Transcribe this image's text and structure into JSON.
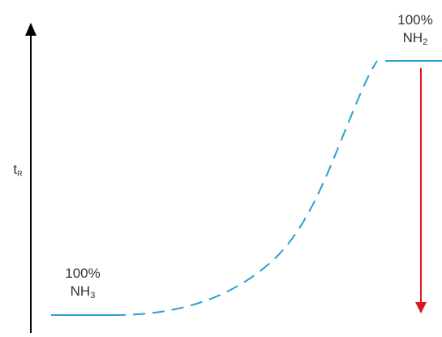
{
  "axis": {
    "y_label_main": "t",
    "y_label_sub": "R"
  },
  "left_state": {
    "percent": "100%",
    "species_main": "NH",
    "species_sub": "3"
  },
  "right_state": {
    "percent": "100%",
    "species_main": "NH",
    "species_sub": "2"
  },
  "colors": {
    "axis": "#000000",
    "curve": "#2aa0d2",
    "arrow": "#e0141e",
    "text": "#333333"
  }
}
